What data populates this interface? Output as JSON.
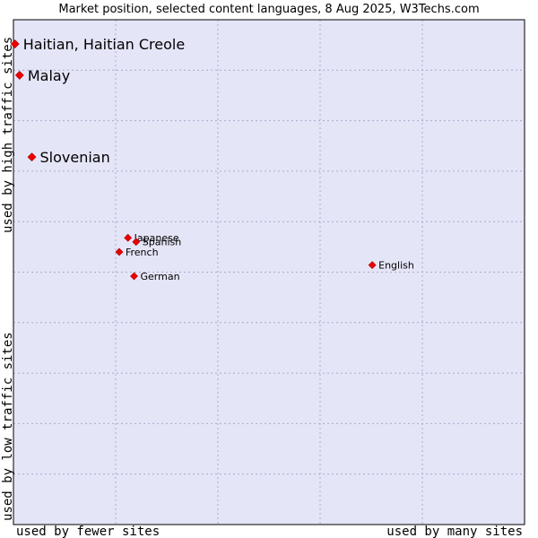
{
  "chart_data": {
    "type": "scatter",
    "title": "Market position, selected content languages, 8 Aug 2025, W3Techs.com",
    "xlabel_left": "used by fewer sites",
    "xlabel_right": "used by many sites",
    "ylabel_top": "used by high traffic sites",
    "ylabel_bottom": "used by low traffic sites",
    "xlim": [
      0,
      100
    ],
    "ylim": [
      0,
      100
    ],
    "grid": true,
    "points": [
      {
        "label": "Haitian, Haitian Creole",
        "x": 0.3,
        "y": 95.2,
        "emphasis": "large"
      },
      {
        "label": "Malay",
        "x": 1.2,
        "y": 89.0,
        "emphasis": "large"
      },
      {
        "label": "Slovenian",
        "x": 3.6,
        "y": 72.8,
        "emphasis": "large"
      },
      {
        "label": "Japanese",
        "x": 22.4,
        "y": 56.8,
        "emphasis": "small"
      },
      {
        "label": "Spanish",
        "x": 24.0,
        "y": 56.0,
        "emphasis": "small"
      },
      {
        "label": "French",
        "x": 20.7,
        "y": 54.0,
        "emphasis": "small"
      },
      {
        "label": "German",
        "x": 23.6,
        "y": 49.2,
        "emphasis": "small"
      },
      {
        "label": "English",
        "x": 70.2,
        "y": 51.4,
        "emphasis": "small"
      }
    ]
  },
  "colors": {
    "plot_background": "#e5e5f8",
    "grid": "#aaaacc",
    "marker": "#ee0000",
    "frame": "#000000"
  }
}
